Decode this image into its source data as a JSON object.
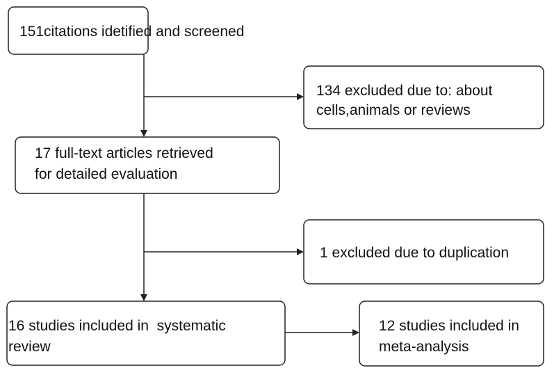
{
  "nodes": [
    {
      "lines": [
        "151citations idetified and screened"
      ]
    },
    {
      "lines": [
        "134 excluded due to: about",
        "cells,animals or reviews"
      ]
    },
    {
      "lines": [
        "17 full-text articles retrieved",
        "for detailed evaluation"
      ]
    },
    {
      "lines": [
        "1 excluded due to duplication"
      ]
    },
    {
      "lines": [
        "16 studies included in  systematic",
        "review"
      ]
    },
    {
      "lines": [
        "12 studies included in",
        "meta-analysis"
      ]
    }
  ]
}
